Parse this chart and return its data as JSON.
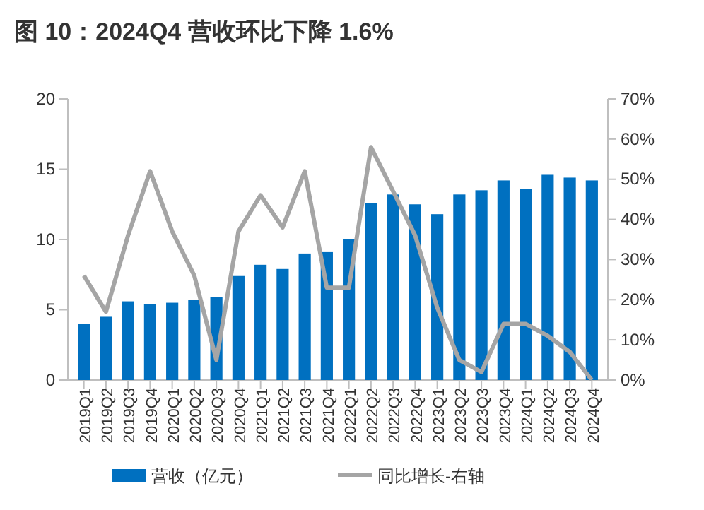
{
  "chart_data": {
    "type": "bar",
    "title": "图 10：2024Q4 营收环比下降 1.6%",
    "categories": [
      "2019Q1",
      "2019Q2",
      "2019Q3",
      "2019Q4",
      "2020Q1",
      "2020Q2",
      "2020Q3",
      "2020Q4",
      "2021Q1",
      "2021Q2",
      "2021Q3",
      "2021Q4",
      "2022Q1",
      "2022Q2",
      "2022Q3",
      "2022Q4",
      "2023Q1",
      "2023Q2",
      "2023Q3",
      "2023Q4",
      "2024Q1",
      "2024Q2",
      "2024Q3",
      "2024Q4"
    ],
    "series": [
      {
        "name": "营收（亿元）",
        "color": "#0070c0",
        "values": [
          4.0,
          4.5,
          5.6,
          5.4,
          5.5,
          5.7,
          5.9,
          7.4,
          8.2,
          7.9,
          9.0,
          9.1,
          10.0,
          12.6,
          13.2,
          12.5,
          11.8,
          13.2,
          13.5,
          14.2,
          13.6,
          14.6,
          14.4,
          14.2
        ]
      },
      {
        "name": "同比增长-右轴",
        "type": "line",
        "axis": "y2",
        "color": "#a5a5a5",
        "values": [
          26,
          17,
          36,
          52,
          37,
          26,
          5,
          37,
          46,
          38,
          52,
          23,
          23,
          58,
          47,
          36,
          18,
          5,
          2,
          14,
          14,
          11,
          7,
          0
        ]
      }
    ],
    "ylim": [
      0,
      20
    ],
    "yticks": [
      0,
      5,
      10,
      15,
      20
    ],
    "y2lim": [
      0,
      70
    ],
    "y2ticks": [
      {
        "value": 0,
        "label": "0%"
      },
      {
        "value": 10,
        "label": "10%"
      },
      {
        "value": 20,
        "label": "20%"
      },
      {
        "value": 30,
        "label": "30%"
      },
      {
        "value": 40,
        "label": "40%"
      },
      {
        "value": 50,
        "label": "50%"
      },
      {
        "value": 60,
        "label": "60%"
      },
      {
        "value": 70,
        "label": "70%"
      }
    ],
    "legend": "bottom",
    "grid": false,
    "marker": "none",
    "line_style": "solid"
  }
}
